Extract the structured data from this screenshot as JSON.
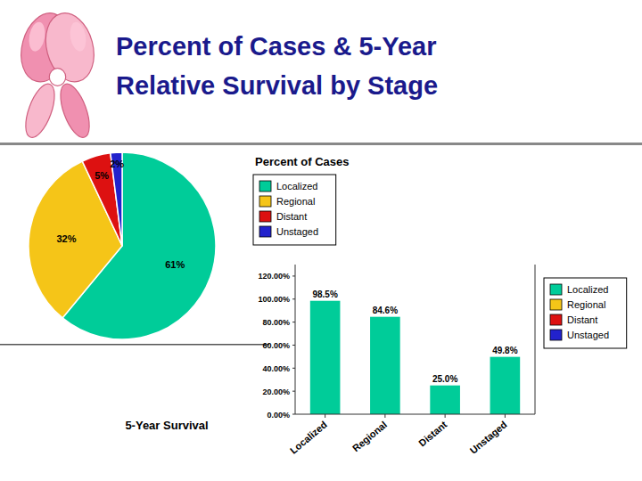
{
  "title": [
    "Percent of Cases & 5-Year",
    "Relative Survival by Stage"
  ],
  "chart_data": [
    {
      "type": "pie",
      "title": "Percent of Cases",
      "categories": [
        "Localized",
        "Regional",
        "Distant",
        "Unstaged"
      ],
      "values": [
        61,
        32,
        5,
        2
      ],
      "value_labels": [
        "61%",
        "32%",
        "5%",
        "2%"
      ],
      "colors": [
        "#00cc99",
        "#f5c518",
        "#dd1111",
        "#2222cc"
      ],
      "data_labels": true,
      "legend": "right"
    },
    {
      "type": "bar",
      "title": "5-Year Survival",
      "categories": [
        "Localized",
        "Regional",
        "Distant",
        "Unstaged"
      ],
      "values": [
        98.5,
        84.6,
        25.0,
        49.8
      ],
      "value_labels": [
        "98.5%",
        "84.6%",
        "25.0%",
        "49.8%"
      ],
      "color": "#00cc99",
      "ylim": [
        0,
        130
      ],
      "yticks": [
        {
          "value": 0,
          "label": "0.00%"
        },
        {
          "value": 20,
          "label": "20.00%"
        },
        {
          "value": 40,
          "label": "40.00%"
        },
        {
          "value": 60,
          "label": "60.00%"
        },
        {
          "value": 80,
          "label": "80.00%"
        },
        {
          "value": 100,
          "label": "100.00%"
        },
        {
          "value": 120,
          "label": "120.00%"
        }
      ],
      "data_labels": true,
      "grid": false,
      "legend": "right"
    }
  ]
}
